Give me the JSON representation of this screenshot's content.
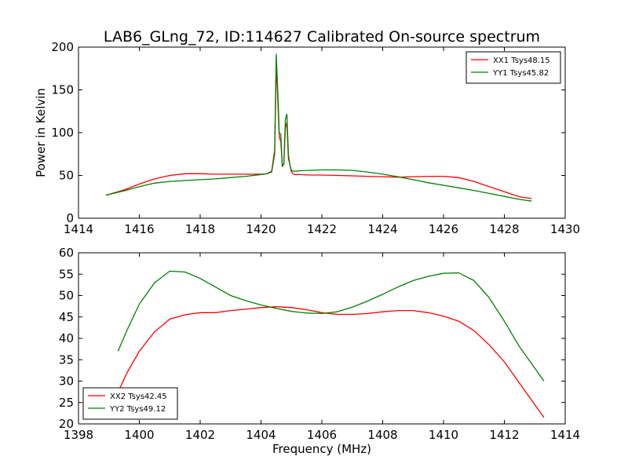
{
  "figure": {
    "title": "LAB6_GLng_72, ID:114627 Calibrated On-source spectrum",
    "xlabel": "Frequency (MHz)"
  },
  "chart_data": [
    {
      "type": "line",
      "ylabel": "Power in Kelvin",
      "xlim": [
        1414,
        1430
      ],
      "ylim": [
        0,
        200
      ],
      "xticks": [
        1414,
        1416,
        1418,
        1420,
        1422,
        1424,
        1426,
        1428,
        1430
      ],
      "yticks": [
        0,
        50,
        100,
        150,
        200
      ],
      "grid": false,
      "legend_position": "top-right",
      "series": [
        {
          "name": "XX1 Tsys48.15",
          "color": "#ff0000",
          "x": [
            1414.9,
            1415.5,
            1416.0,
            1416.5,
            1417.0,
            1417.5,
            1418.0,
            1418.5,
            1419.0,
            1419.5,
            1420.0,
            1420.2,
            1420.35,
            1420.45,
            1420.5,
            1420.55,
            1420.6,
            1420.65,
            1420.7,
            1420.75,
            1420.8,
            1420.85,
            1420.9,
            1420.95,
            1421.0,
            1421.05,
            1421.1,
            1421.3,
            1421.6,
            1422.0,
            1422.5,
            1423.0,
            1423.5,
            1424.0,
            1424.5,
            1425.0,
            1425.5,
            1426.0,
            1426.5,
            1427.0,
            1427.5,
            1428.0,
            1428.5,
            1428.9
          ],
          "values": [
            27,
            33,
            40,
            46,
            50,
            52,
            52,
            51.5,
            51.5,
            51.5,
            51.5,
            52,
            54,
            75,
            180,
            140,
            95,
            90,
            62,
            63,
            105,
            112,
            70,
            62,
            54,
            52,
            51,
            51,
            50.5,
            50.5,
            50,
            49.5,
            49,
            48.5,
            48,
            48.5,
            49,
            49,
            47.5,
            43,
            37,
            31,
            25,
            23
          ]
        },
        {
          "name": "YY1 Tsys45.82",
          "color": "#008000",
          "x": [
            1414.9,
            1415.5,
            1416.0,
            1416.5,
            1417.0,
            1417.5,
            1418.0,
            1418.5,
            1419.0,
            1419.5,
            1420.0,
            1420.2,
            1420.35,
            1420.45,
            1420.5,
            1420.55,
            1420.6,
            1420.65,
            1420.7,
            1420.75,
            1420.8,
            1420.85,
            1420.9,
            1420.95,
            1421.0,
            1421.05,
            1421.1,
            1421.3,
            1421.6,
            1422.0,
            1422.5,
            1423.0,
            1423.5,
            1424.0,
            1424.5,
            1425.0,
            1425.5,
            1426.0,
            1426.5,
            1427.0,
            1427.5,
            1428.0,
            1428.5,
            1428.9
          ],
          "values": [
            27,
            32,
            37,
            41,
            43,
            44,
            45,
            46,
            47.5,
            49,
            51,
            52,
            55,
            80,
            192,
            150,
            100,
            98,
            60,
            64,
            115,
            122,
            75,
            62,
            56,
            55,
            55,
            55.5,
            56,
            56.5,
            56.5,
            56,
            54,
            51.5,
            48.5,
            45,
            41.5,
            38.5,
            35.5,
            32.5,
            29,
            25.5,
            22,
            20
          ]
        }
      ]
    },
    {
      "type": "line",
      "xlabel": "Frequency (MHz)",
      "xlim": [
        1398,
        1414
      ],
      "ylim": [
        20,
        60
      ],
      "xticks": [
        1398,
        1400,
        1402,
        1404,
        1406,
        1408,
        1410,
        1412,
        1414
      ],
      "yticks": [
        20,
        25,
        30,
        35,
        40,
        45,
        50,
        55,
        60
      ],
      "grid": false,
      "legend_position": "bottom-left",
      "series": [
        {
          "name": "XX2 Tsys42.45",
          "color": "#ff0000",
          "x": [
            1399.3,
            1399.6,
            1400.0,
            1400.5,
            1401.0,
            1401.5,
            1402.0,
            1402.5,
            1403.0,
            1403.5,
            1404.0,
            1404.5,
            1405.0,
            1405.5,
            1406.0,
            1406.5,
            1407.0,
            1407.5,
            1408.0,
            1408.5,
            1409.0,
            1409.5,
            1410.0,
            1410.5,
            1411.0,
            1411.5,
            1412.0,
            1412.5,
            1413.0,
            1413.3
          ],
          "values": [
            27.5,
            32,
            37,
            41.5,
            44.5,
            45.5,
            46,
            46,
            46.5,
            46.8,
            47.2,
            47.4,
            47.2,
            46.7,
            46,
            45.6,
            45.6,
            45.8,
            46.2,
            46.5,
            46.5,
            46,
            45.2,
            44,
            41.8,
            38.5,
            34.5,
            29.5,
            24.5,
            21.5
          ]
        },
        {
          "name": "YY2 Tsys49.12",
          "color": "#008000",
          "x": [
            1399.3,
            1399.6,
            1400.0,
            1400.5,
            1401.0,
            1401.5,
            1402.0,
            1402.5,
            1403.0,
            1403.5,
            1404.0,
            1404.5,
            1405.0,
            1405.5,
            1406.0,
            1406.5,
            1407.0,
            1407.5,
            1408.0,
            1408.5,
            1409.0,
            1409.5,
            1410.0,
            1410.5,
            1411.0,
            1411.5,
            1412.0,
            1412.5,
            1413.0,
            1413.3
          ],
          "values": [
            37,
            42,
            48,
            53,
            55.7,
            55.5,
            54,
            52,
            50,
            48.8,
            47.8,
            47,
            46.3,
            45.9,
            45.8,
            46.2,
            47.3,
            48.7,
            50.3,
            52,
            53.5,
            54.5,
            55.2,
            55.3,
            53.5,
            49.5,
            44,
            38,
            33,
            30
          ]
        }
      ]
    }
  ]
}
